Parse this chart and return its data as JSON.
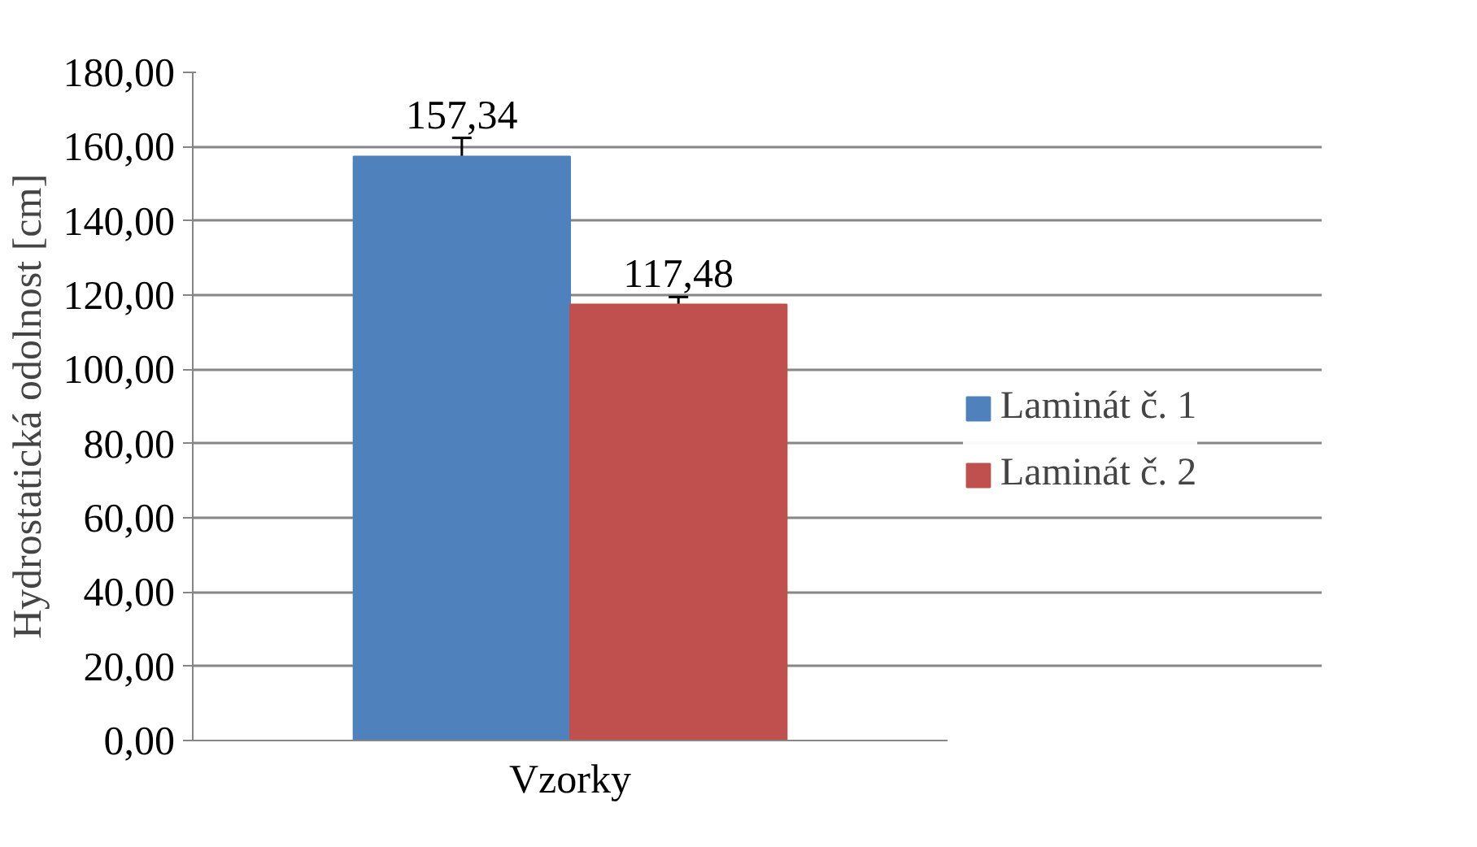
{
  "chart_data": {
    "type": "bar",
    "ylabel": "Hydrostatická odolnost [cm]",
    "categories": [
      "Vzorky"
    ],
    "series": [
      {
        "name": "Laminát č. 1",
        "color": "#4f81bd",
        "values": [
          157.34
        ],
        "errors": [
          5
        ],
        "value_labels": [
          "157,34"
        ]
      },
      {
        "name": "Laminát č. 2",
        "color": "#c0504d",
        "values": [
          117.48
        ],
        "errors": [
          2
        ],
        "value_labels": [
          "117,48"
        ]
      }
    ],
    "ylim": [
      0,
      180
    ],
    "yticks": [
      {
        "value": 0,
        "label": "0,00"
      },
      {
        "value": 20,
        "label": "20,00"
      },
      {
        "value": 40,
        "label": "40,00"
      },
      {
        "value": 60,
        "label": "60,00"
      },
      {
        "value": 80,
        "label": "80,00"
      },
      {
        "value": 100,
        "label": "100,00"
      },
      {
        "value": 120,
        "label": "120,00"
      },
      {
        "value": 140,
        "label": "140,00"
      },
      {
        "value": 160,
        "label": "160,00"
      },
      {
        "value": 180,
        "label": "180,00"
      }
    ],
    "grid": "y",
    "legend": "right"
  }
}
